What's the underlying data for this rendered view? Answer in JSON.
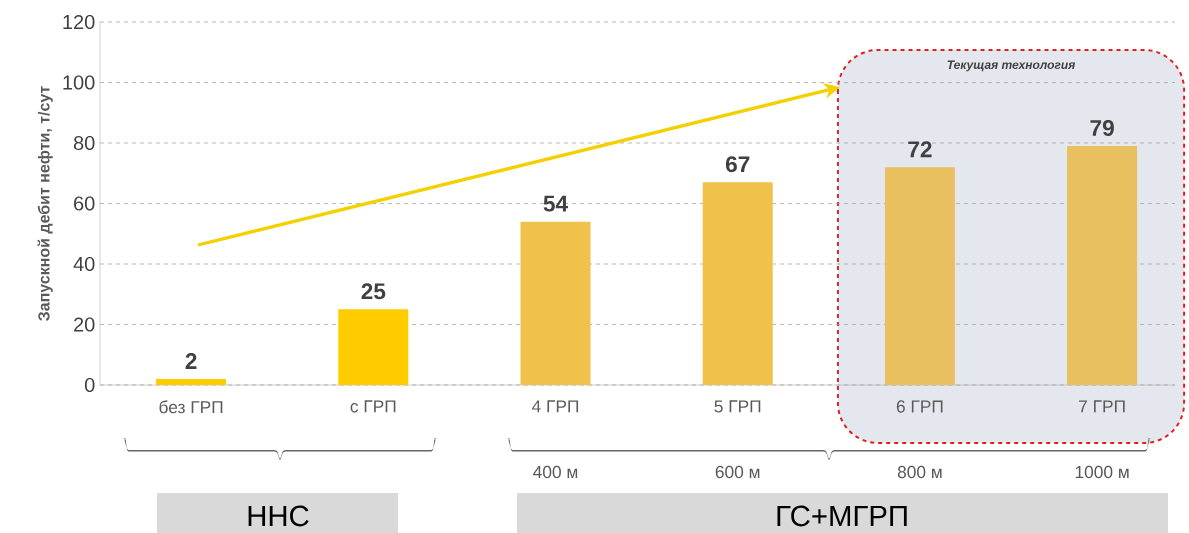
{
  "chart_data": {
    "type": "bar",
    "ylabel": "Запускной дебит нефти, т/сут",
    "categories": [
      "без ГРП",
      "с ГРП",
      "4 ГРП",
      "5 ГРП",
      "6 ГРП",
      "7 ГРП"
    ],
    "values": [
      2,
      25,
      54,
      67,
      72,
      79
    ],
    "colors": [
      "#ffcc00",
      "#ffcc00",
      "#f0c24a",
      "#f0c24a",
      "#e8c060",
      "#e8c060"
    ],
    "ylim": [
      0,
      120
    ],
    "yticks": [
      0,
      20,
      40,
      60,
      80,
      100,
      120
    ],
    "grid": "y",
    "data_labels": true,
    "bands": [
      {
        "axis": "x",
        "from": "6 ГРП",
        "to": "7 ГРП",
        "label": "Текущая технология",
        "color": "#e4e7ee"
      }
    ],
    "annotations": [
      "400 м",
      "600 м",
      "800 м",
      "1000 м",
      "ННС",
      "ГС+МГРП"
    ]
  }
}
